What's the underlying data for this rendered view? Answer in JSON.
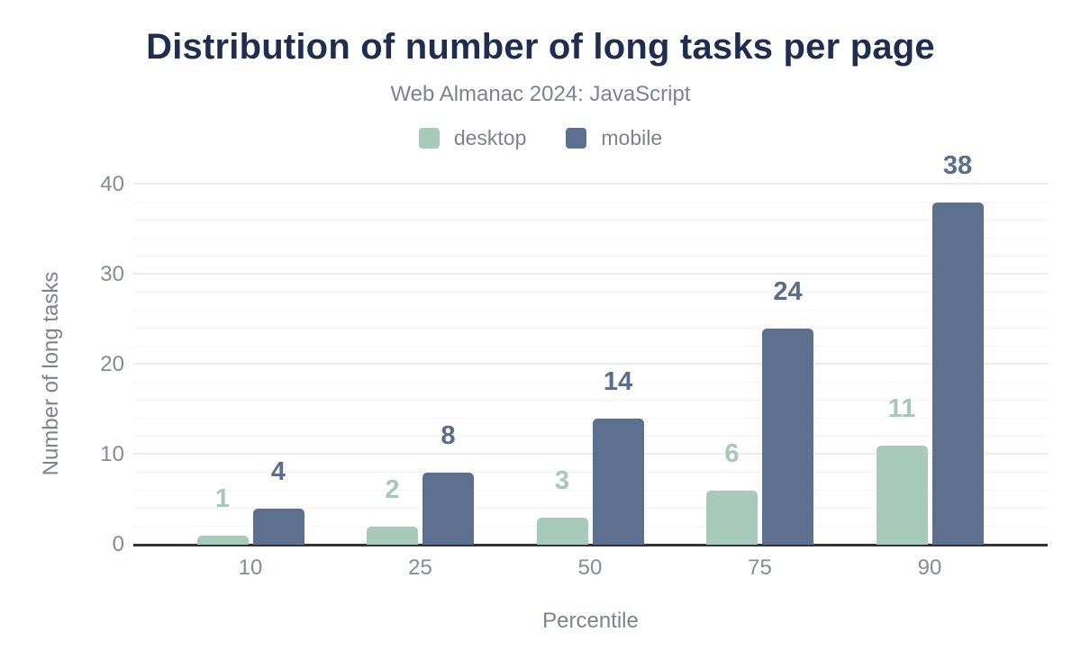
{
  "chart_data": {
    "type": "bar",
    "title": "Distribution of number of long tasks per page",
    "subtitle": "Web Almanac 2024: JavaScript",
    "categories": [
      "10",
      "25",
      "50",
      "75",
      "90"
    ],
    "series": [
      {
        "name": "desktop",
        "color": "#a8cabb",
        "label_color": "#a6c8b9",
        "values": [
          1,
          2,
          3,
          6,
          11
        ]
      },
      {
        "name": "mobile",
        "color": "#5e7090",
        "label_color": "#5b6d8d",
        "values": [
          4,
          8,
          14,
          24,
          38
        ]
      }
    ],
    "xlabel": "Percentile",
    "ylabel": "Number of long tasks",
    "ylim": [
      0,
      40
    ],
    "yticks": [
      0,
      10,
      20,
      30,
      40
    ],
    "minor_grid_step": 2,
    "grid": true,
    "legend_position": "top",
    "data_labels": true,
    "colors": {
      "title": "#1f2e4e",
      "subtitle_text": "#7d828d",
      "tick_text": "#868b95",
      "axis_line": "#333333",
      "major_gridline": "#ececec",
      "minor_gridline": "#f4f4f4",
      "background": "#ffffff"
    }
  }
}
